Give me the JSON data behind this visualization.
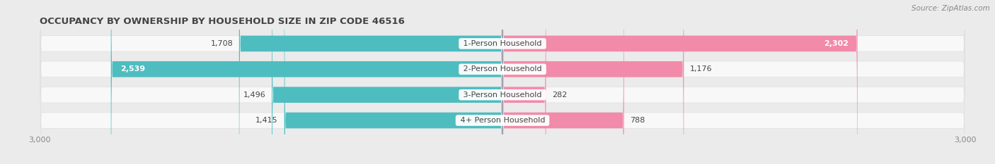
{
  "title": "OCCUPANCY BY OWNERSHIP BY HOUSEHOLD SIZE IN ZIP CODE 46516",
  "source": "Source: ZipAtlas.com",
  "categories": [
    "1-Person Household",
    "2-Person Household",
    "3-Person Household",
    "4+ Person Household"
  ],
  "owner_values": [
    1708,
    2539,
    1496,
    1415
  ],
  "renter_values": [
    2302,
    1176,
    282,
    788
  ],
  "owner_color": "#4dbdc0",
  "renter_color": "#f28aaa",
  "background_color": "#ebebeb",
  "bar_background": "#f8f8f8",
  "bar_bg_edge": "#e0e0e0",
  "axis_limit": 3000,
  "bar_height": 0.62,
  "label_fontsize": 8.0,
  "title_fontsize": 9.5,
  "legend_fontsize": 8.5,
  "source_fontsize": 7.5,
  "value_label_color": "#444444",
  "category_label_color": "#444444",
  "axis_label_color": "#888888",
  "title_color": "#444444",
  "rounding_size": 10
}
